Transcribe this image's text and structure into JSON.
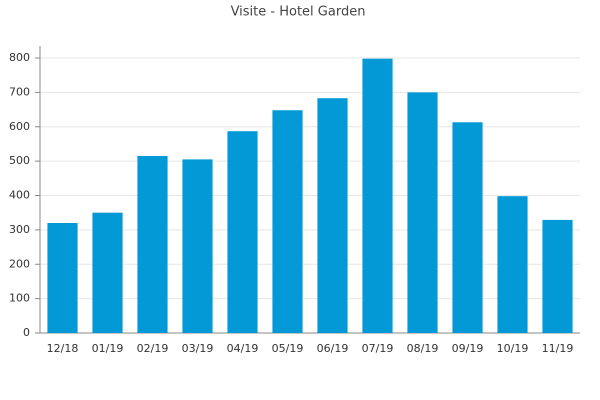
{
  "chart_data": {
    "type": "bar",
    "title": "Visite - Hotel Garden",
    "categories": [
      "12/18",
      "01/19",
      "02/19",
      "03/19",
      "04/19",
      "05/19",
      "06/19",
      "07/19",
      "08/19",
      "09/19",
      "10/19",
      "11/19"
    ],
    "values": [
      320,
      350,
      515,
      505,
      587,
      648,
      683,
      798,
      700,
      613,
      398,
      329
    ],
    "color": "#0398d6",
    "ylim": [
      0,
      800
    ],
    "yticks": [
      0,
      100,
      200,
      300,
      400,
      500,
      600,
      700,
      800
    ],
    "grid": true
  }
}
